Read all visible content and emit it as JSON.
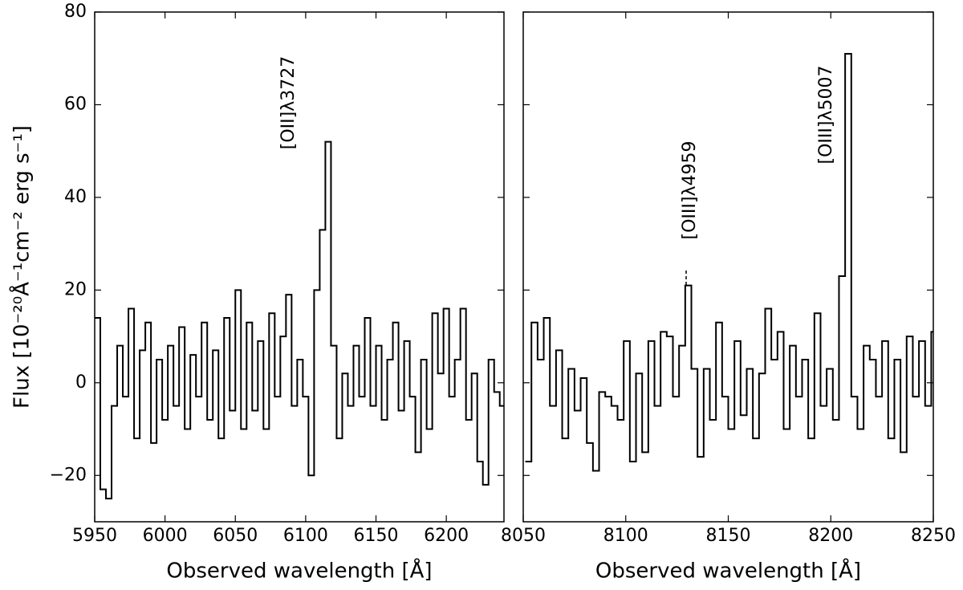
{
  "chart_data": [
    {
      "type": "step",
      "ylabel": "Flux [10⁻²⁰Å⁻¹cm⁻² erg s⁻¹]",
      "xlabel": "Observed wavelength [Å]",
      "annotations": [
        "[OII]λ3727"
      ],
      "color": "#000000",
      "xlim": [
        5950,
        6241
      ],
      "xticks": [
        5950,
        6000,
        6050,
        6100,
        6150,
        6200
      ],
      "ylim": [
        -30,
        80
      ],
      "yticks": [
        {
          "value": -20,
          "label": "−20"
        },
        0,
        20,
        40,
        60,
        80
      ],
      "yticklabels": true,
      "x": [
        5950,
        5954,
        5958,
        5962,
        5966,
        5970,
        5974,
        5978,
        5982,
        5986,
        5990,
        5994,
        5998,
        6002,
        6006,
        6010,
        6014,
        6018,
        6022,
        6026,
        6030,
        6034,
        6038,
        6042,
        6046,
        6050,
        6054,
        6058,
        6062,
        6066,
        6070,
        6074,
        6078,
        6082,
        6086,
        6090,
        6094,
        6098,
        6102,
        6106,
        6110,
        6114,
        6118,
        6122,
        6126,
        6130,
        6134,
        6138,
        6142,
        6146,
        6150,
        6154,
        6158,
        6162,
        6166,
        6170,
        6174,
        6178,
        6182,
        6186,
        6190,
        6194,
        6198,
        6202,
        6206,
        6210,
        6214,
        6218,
        6222,
        6226,
        6230,
        6234,
        6238
      ],
      "values": [
        14,
        -23,
        -25,
        -5,
        8,
        -3,
        16,
        -12,
        7,
        13,
        -13,
        5,
        -8,
        8,
        -5,
        12,
        -10,
        6,
        -3,
        13,
        -8,
        7,
        -12,
        14,
        -6,
        20,
        -10,
        13,
        -6,
        9,
        -10,
        15,
        -3,
        10,
        19,
        -5,
        5,
        -3,
        -20,
        20,
        33,
        52,
        8,
        -12,
        2,
        -5,
        8,
        -3,
        14,
        -5,
        8,
        -8,
        5,
        13,
        -6,
        9,
        -3,
        -15,
        5,
        -10,
        15,
        2,
        16,
        -3,
        5,
        16,
        -8,
        2,
        -17,
        -22,
        5,
        -2,
        -5
      ]
    },
    {
      "type": "step",
      "xlabel": "Observed wavelength [Å]",
      "annotations": [
        "[OIII]λ4959",
        "[OIII]λ5007"
      ],
      "color": "#000000",
      "xlim": [
        8050,
        8250
      ],
      "xticks": [
        8050,
        8100,
        8150,
        8200,
        8250
      ],
      "ylim": [
        -30,
        80
      ],
      "yticks": [
        -20,
        0,
        20,
        40,
        60,
        80
      ],
      "yticklabels": false,
      "x": [
        8051,
        8054,
        8057,
        8060,
        8063,
        8066,
        8069,
        8072,
        8075,
        8078,
        8081,
        8084,
        8087,
        8090,
        8093,
        8096,
        8099,
        8102,
        8105,
        8108,
        8111,
        8114,
        8117,
        8120,
        8123,
        8126,
        8129,
        8132,
        8135,
        8138,
        8141,
        8144,
        8147,
        8150,
        8153,
        8156,
        8159,
        8162,
        8165,
        8168,
        8171,
        8174,
        8177,
        8180,
        8183,
        8186,
        8189,
        8192,
        8195,
        8198,
        8201,
        8204,
        8207,
        8210,
        8213,
        8216,
        8219,
        8222,
        8225,
        8228,
        8231,
        8234,
        8237,
        8240,
        8243,
        8246,
        8249
      ],
      "values": [
        -17,
        13,
        5,
        14,
        -5,
        7,
        -12,
        3,
        -6,
        1,
        -13,
        -19,
        -2,
        -3,
        -5,
        -8,
        9,
        -17,
        2,
        -15,
        9,
        -5,
        11,
        10,
        -3,
        8,
        21,
        3,
        -16,
        3,
        -8,
        13,
        -3,
        -10,
        9,
        -7,
        3,
        -12,
        2,
        16,
        5,
        11,
        -10,
        8,
        -3,
        5,
        -12,
        15,
        -5,
        3,
        -8,
        23,
        71,
        -3,
        -10,
        8,
        5,
        -3,
        9,
        -12,
        5,
        -15,
        10,
        -3,
        9,
        -5,
        11
      ]
    }
  ]
}
